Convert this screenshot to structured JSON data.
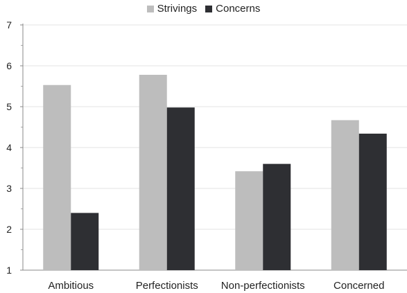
{
  "chart_data": {
    "type": "bar",
    "categories": [
      "Ambitious",
      "Perfectionists",
      "Non-perfectionists",
      "Concerned"
    ],
    "series": [
      {
        "name": "Strivings",
        "color": "#bdbdbd",
        "values": [
          5.53,
          5.78,
          3.42,
          4.67
        ]
      },
      {
        "name": "Concerns",
        "color": "#2e2f33",
        "values": [
          2.4,
          4.98,
          3.6,
          4.34
        ]
      }
    ],
    "ylim": [
      1,
      7
    ],
    "yticks": [
      1,
      2,
      3,
      4,
      5,
      6,
      7
    ],
    "title": "",
    "xlabel": "",
    "ylabel": "",
    "grid": true,
    "legend_position": "top-center"
  }
}
